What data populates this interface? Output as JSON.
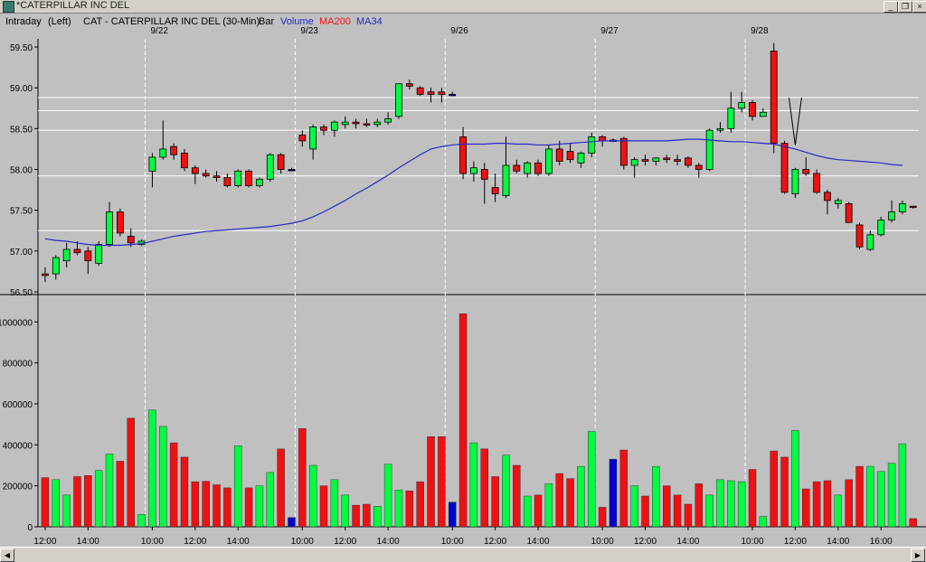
{
  "window": {
    "title": "*CATERPILLAR INC DEL",
    "minimize_glyph": "_",
    "restore_glyph": "❐",
    "close_glyph": "×"
  },
  "header": {
    "interval": "Intraday",
    "axis_side": "(Left)",
    "symbol_text": "CAT - CATERPILLAR INC DEL  (30-Min)",
    "bar_label": "Bar",
    "volume_label": "Volume",
    "ma200_label": "MA200",
    "ma34_label": "MA34"
  },
  "colors": {
    "up": "#00ff40",
    "down": "#ee1111",
    "flat": "#0000cc",
    "ma34": "#2828c8",
    "grid": "#ffffff",
    "bg": "#c0c0c0"
  },
  "scrollbar": {
    "left_glyph": "◀",
    "right_glyph": "▶"
  },
  "chart_data": {
    "type": "candlestick",
    "title": "CAT - CATERPILLAR INC DEL (30-Min)",
    "price_axis": {
      "ylim": [
        56.5,
        59.6
      ],
      "ticks": [
        "56.50",
        "57.00",
        "57.50",
        "58.00",
        "58.50",
        "59.00",
        "59.50"
      ]
    },
    "volume_axis": {
      "ylim": [
        0,
        1050000
      ],
      "ticks": [
        "0",
        "200000",
        "400000",
        "600000",
        "800000",
        "1000000"
      ]
    },
    "day_labels": [
      {
        "label": "9/22",
        "at_bar": 10
      },
      {
        "label": "9/23",
        "at_bar": 24
      },
      {
        "label": "9/26",
        "at_bar": 38
      },
      {
        "label": "9/27",
        "at_bar": 52
      },
      {
        "label": "9/28",
        "at_bar": 66
      }
    ],
    "time_labels": [
      {
        "label": "12:00",
        "at_bar": 0.5
      },
      {
        "label": "14:00",
        "at_bar": 4.5
      },
      {
        "label": "10:00",
        "at_bar": 10.5
      },
      {
        "label": "12:00",
        "at_bar": 14.5
      },
      {
        "label": "14:00",
        "at_bar": 18.5
      },
      {
        "label": "10:00",
        "at_bar": 24.5
      },
      {
        "label": "12:00",
        "at_bar": 28.5
      },
      {
        "label": "14:00",
        "at_bar": 32.5
      },
      {
        "label": "10:00",
        "at_bar": 38.5
      },
      {
        "label": "12:00",
        "at_bar": 42.5
      },
      {
        "label": "14:00",
        "at_bar": 46.5
      },
      {
        "label": "10:00",
        "at_bar": 52.5
      },
      {
        "label": "12:00",
        "at_bar": 56.5
      },
      {
        "label": "14:00",
        "at_bar": 60.5
      },
      {
        "label": "10:00",
        "at_bar": 66.5
      },
      {
        "label": "12:00",
        "at_bar": 70.5
      },
      {
        "label": "14:00",
        "at_bar": 74.5
      },
      {
        "label": "16:00",
        "at_bar": 78.5
      }
    ],
    "horizontal_lines": [
      57.25,
      57.92,
      58.48,
      58.72,
      58.88
    ],
    "annotation": "V",
    "bars": [
      {
        "o": 56.7,
        "h": 56.8,
        "l": 56.62,
        "c": 56.72,
        "v": 240000,
        "d": "down"
      },
      {
        "o": 56.72,
        "h": 56.95,
        "l": 56.65,
        "c": 56.92,
        "v": 230000,
        "d": "up"
      },
      {
        "o": 56.88,
        "h": 57.1,
        "l": 56.8,
        "c": 57.02,
        "v": 155000,
        "d": "up"
      },
      {
        "o": 57.02,
        "h": 57.12,
        "l": 56.95,
        "c": 56.98,
        "v": 245000,
        "d": "down"
      },
      {
        "o": 57.0,
        "h": 57.05,
        "l": 56.72,
        "c": 56.88,
        "v": 250000,
        "d": "down"
      },
      {
        "o": 56.85,
        "h": 57.12,
        "l": 56.82,
        "c": 57.08,
        "v": 275000,
        "d": "up"
      },
      {
        "o": 57.08,
        "h": 57.6,
        "l": 57.05,
        "c": 57.48,
        "v": 355000,
        "d": "up"
      },
      {
        "o": 57.48,
        "h": 57.52,
        "l": 57.18,
        "c": 57.22,
        "v": 320000,
        "d": "down"
      },
      {
        "o": 57.18,
        "h": 57.28,
        "l": 57.05,
        "c": 57.1,
        "v": 530000,
        "d": "down"
      },
      {
        "o": 57.08,
        "h": 57.14,
        "l": 57.06,
        "c": 57.12,
        "v": 60000,
        "d": "up"
      },
      {
        "o": 57.98,
        "h": 58.2,
        "l": 57.78,
        "c": 58.15,
        "v": 570000,
        "d": "up"
      },
      {
        "o": 58.15,
        "h": 58.6,
        "l": 58.12,
        "c": 58.25,
        "v": 490000,
        "d": "up"
      },
      {
        "o": 58.28,
        "h": 58.32,
        "l": 58.12,
        "c": 58.18,
        "v": 410000,
        "d": "down"
      },
      {
        "o": 58.2,
        "h": 58.25,
        "l": 57.98,
        "c": 58.02,
        "v": 340000,
        "d": "down"
      },
      {
        "o": 58.02,
        "h": 58.05,
        "l": 57.82,
        "c": 57.95,
        "v": 220000,
        "d": "down"
      },
      {
        "o": 57.95,
        "h": 58.0,
        "l": 57.9,
        "c": 57.92,
        "v": 222000,
        "d": "down"
      },
      {
        "o": 57.92,
        "h": 57.98,
        "l": 57.85,
        "c": 57.9,
        "v": 205000,
        "d": "down"
      },
      {
        "o": 57.9,
        "h": 57.95,
        "l": 57.78,
        "c": 57.8,
        "v": 190000,
        "d": "down"
      },
      {
        "o": 57.8,
        "h": 58.0,
        "l": 57.78,
        "c": 57.98,
        "v": 395000,
        "d": "up"
      },
      {
        "o": 57.98,
        "h": 58.0,
        "l": 57.78,
        "c": 57.8,
        "v": 190000,
        "d": "down"
      },
      {
        "o": 57.8,
        "h": 57.9,
        "l": 57.78,
        "c": 57.88,
        "v": 200000,
        "d": "up"
      },
      {
        "o": 57.88,
        "h": 58.2,
        "l": 57.85,
        "c": 58.18,
        "v": 265000,
        "d": "up"
      },
      {
        "o": 58.18,
        "h": 58.2,
        "l": 57.95,
        "c": 58.0,
        "v": 380000,
        "d": "down"
      },
      {
        "o": 58.0,
        "h": 58.02,
        "l": 57.98,
        "c": 58.0,
        "v": 45000,
        "d": "flat"
      },
      {
        "o": 58.42,
        "h": 58.48,
        "l": 58.28,
        "c": 58.35,
        "v": 480000,
        "d": "down"
      },
      {
        "o": 58.25,
        "h": 58.55,
        "l": 58.12,
        "c": 58.52,
        "v": 300000,
        "d": "up"
      },
      {
        "o": 58.52,
        "h": 58.55,
        "l": 58.42,
        "c": 58.48,
        "v": 200000,
        "d": "down"
      },
      {
        "o": 58.48,
        "h": 58.6,
        "l": 58.4,
        "c": 58.58,
        "v": 230000,
        "d": "up"
      },
      {
        "o": 58.58,
        "h": 58.65,
        "l": 58.5,
        "c": 58.55,
        "v": 155000,
        "d": "up"
      },
      {
        "o": 58.58,
        "h": 58.62,
        "l": 58.5,
        "c": 58.56,
        "v": 105000,
        "d": "down"
      },
      {
        "o": 58.56,
        "h": 58.62,
        "l": 58.52,
        "c": 58.55,
        "v": 110000,
        "d": "down"
      },
      {
        "o": 58.55,
        "h": 58.62,
        "l": 58.52,
        "c": 58.58,
        "v": 100000,
        "d": "up"
      },
      {
        "o": 58.58,
        "h": 58.7,
        "l": 58.55,
        "c": 58.62,
        "v": 305000,
        "d": "up"
      },
      {
        "o": 58.65,
        "h": 59.05,
        "l": 58.62,
        "c": 59.05,
        "v": 180000,
        "d": "up"
      },
      {
        "o": 59.05,
        "h": 59.1,
        "l": 58.98,
        "c": 59.02,
        "v": 175000,
        "d": "down"
      },
      {
        "o": 59.0,
        "h": 59.02,
        "l": 58.9,
        "c": 58.92,
        "v": 220000,
        "d": "down"
      },
      {
        "o": 58.95,
        "h": 59.0,
        "l": 58.82,
        "c": 58.92,
        "v": 440000,
        "d": "down"
      },
      {
        "o": 58.95,
        "h": 59.0,
        "l": 58.82,
        "c": 58.92,
        "v": 440000,
        "d": "down"
      },
      {
        "o": 58.92,
        "h": 58.95,
        "l": 58.9,
        "c": 58.92,
        "v": 120000,
        "d": "flat"
      },
      {
        "o": 58.4,
        "h": 58.52,
        "l": 57.88,
        "c": 57.95,
        "v": 1040000,
        "d": "down"
      },
      {
        "o": 57.95,
        "h": 58.1,
        "l": 57.85,
        "c": 58.02,
        "v": 410000,
        "d": "up"
      },
      {
        "o": 58.0,
        "h": 58.08,
        "l": 57.58,
        "c": 57.88,
        "v": 380000,
        "d": "down"
      },
      {
        "o": 57.78,
        "h": 57.95,
        "l": 57.6,
        "c": 57.7,
        "v": 245000,
        "d": "down"
      },
      {
        "o": 57.68,
        "h": 58.4,
        "l": 57.65,
        "c": 58.05,
        "v": 350000,
        "d": "up"
      },
      {
        "o": 58.05,
        "h": 58.12,
        "l": 57.95,
        "c": 57.98,
        "v": 300000,
        "d": "down"
      },
      {
        "o": 57.95,
        "h": 58.1,
        "l": 57.9,
        "c": 58.08,
        "v": 150000,
        "d": "up"
      },
      {
        "o": 58.08,
        "h": 58.12,
        "l": 57.92,
        "c": 57.95,
        "v": 155000,
        "d": "down"
      },
      {
        "o": 57.95,
        "h": 58.3,
        "l": 57.92,
        "c": 58.25,
        "v": 210000,
        "d": "up"
      },
      {
        "o": 58.25,
        "h": 58.35,
        "l": 58.05,
        "c": 58.1,
        "v": 260000,
        "d": "down"
      },
      {
        "o": 58.22,
        "h": 58.32,
        "l": 58.08,
        "c": 58.12,
        "v": 235000,
        "d": "down"
      },
      {
        "o": 58.08,
        "h": 58.22,
        "l": 58.02,
        "c": 58.2,
        "v": 295000,
        "d": "up"
      },
      {
        "o": 58.2,
        "h": 58.45,
        "l": 58.15,
        "c": 58.4,
        "v": 465000,
        "d": "up"
      },
      {
        "o": 58.4,
        "h": 58.42,
        "l": 58.28,
        "c": 58.35,
        "v": 95000,
        "d": "down"
      },
      {
        "o": 58.36,
        "h": 58.38,
        "l": 58.34,
        "c": 58.36,
        "v": 330000,
        "d": "flat"
      },
      {
        "o": 58.38,
        "h": 58.4,
        "l": 58.0,
        "c": 58.05,
        "v": 375000,
        "d": "down"
      },
      {
        "o": 58.05,
        "h": 58.15,
        "l": 57.9,
        "c": 58.12,
        "v": 200000,
        "d": "up"
      },
      {
        "o": 58.12,
        "h": 58.18,
        "l": 58.05,
        "c": 58.1,
        "v": 150000,
        "d": "down"
      },
      {
        "o": 58.1,
        "h": 58.15,
        "l": 58.05,
        "c": 58.14,
        "v": 295000,
        "d": "up"
      },
      {
        "o": 58.14,
        "h": 58.18,
        "l": 58.08,
        "c": 58.12,
        "v": 200000,
        "d": "down"
      },
      {
        "o": 58.12,
        "h": 58.18,
        "l": 58.05,
        "c": 58.1,
        "v": 155000,
        "d": "down"
      },
      {
        "o": 58.14,
        "h": 58.16,
        "l": 58.02,
        "c": 58.05,
        "v": 110000,
        "d": "down"
      },
      {
        "o": 58.05,
        "h": 58.08,
        "l": 57.9,
        "c": 58.0,
        "v": 210000,
        "d": "down"
      },
      {
        "o": 58.0,
        "h": 58.5,
        "l": 57.98,
        "c": 58.48,
        "v": 155000,
        "d": "up"
      },
      {
        "o": 58.48,
        "h": 58.58,
        "l": 58.45,
        "c": 58.5,
        "v": 230000,
        "d": "up"
      },
      {
        "o": 58.5,
        "h": 58.95,
        "l": 58.45,
        "c": 58.75,
        "v": 225000,
        "d": "up"
      },
      {
        "o": 58.75,
        "h": 58.95,
        "l": 58.7,
        "c": 58.82,
        "v": 220000,
        "d": "up"
      },
      {
        "o": 58.82,
        "h": 58.85,
        "l": 58.6,
        "c": 58.65,
        "v": 280000,
        "d": "down"
      },
      {
        "o": 58.65,
        "h": 58.75,
        "l": 58.65,
        "c": 58.7,
        "v": 50000,
        "d": "up"
      },
      {
        "o": 59.45,
        "h": 59.55,
        "l": 58.2,
        "c": 58.32,
        "v": 370000,
        "d": "down"
      },
      {
        "o": 58.32,
        "h": 58.35,
        "l": 57.7,
        "c": 57.72,
        "v": 340000,
        "d": "down"
      },
      {
        "o": 57.7,
        "h": 58.02,
        "l": 57.65,
        "c": 58.0,
        "v": 470000,
        "d": "up"
      },
      {
        "o": 58.0,
        "h": 58.15,
        "l": 57.92,
        "c": 57.95,
        "v": 185000,
        "d": "down"
      },
      {
        "o": 57.95,
        "h": 58.0,
        "l": 57.7,
        "c": 57.72,
        "v": 220000,
        "d": "down"
      },
      {
        "o": 57.72,
        "h": 57.75,
        "l": 57.45,
        "c": 57.62,
        "v": 225000,
        "d": "down"
      },
      {
        "o": 57.62,
        "h": 57.65,
        "l": 57.52,
        "c": 57.58,
        "v": 155000,
        "d": "up"
      },
      {
        "o": 57.58,
        "h": 57.6,
        "l": 57.35,
        "c": 57.35,
        "v": 230000,
        "d": "down"
      },
      {
        "o": 57.32,
        "h": 57.35,
        "l": 57.02,
        "c": 57.05,
        "v": 295000,
        "d": "down"
      },
      {
        "o": 57.02,
        "h": 57.25,
        "l": 57.0,
        "c": 57.2,
        "v": 295000,
        "d": "up"
      },
      {
        "o": 57.2,
        "h": 57.42,
        "l": 57.18,
        "c": 57.38,
        "v": 270000,
        "d": "up"
      },
      {
        "o": 57.38,
        "h": 57.62,
        "l": 57.35,
        "c": 57.48,
        "v": 310000,
        "d": "up"
      },
      {
        "o": 57.48,
        "h": 57.62,
        "l": 57.45,
        "c": 57.58,
        "v": 405000,
        "d": "up"
      },
      {
        "o": 57.55,
        "h": 57.55,
        "l": 57.52,
        "c": 57.55,
        "v": 40000,
        "d": "down"
      }
    ],
    "ma34": [
      57.15,
      57.13,
      57.12,
      57.1,
      57.08,
      57.07,
      57.07,
      57.07,
      57.08,
      57.09,
      57.12,
      57.15,
      57.18,
      57.2,
      57.22,
      57.24,
      57.25,
      57.26,
      57.27,
      57.28,
      57.29,
      57.3,
      57.32,
      57.34,
      57.37,
      57.42,
      57.48,
      57.55,
      57.62,
      57.7,
      57.77,
      57.85,
      57.93,
      58.02,
      58.1,
      58.18,
      58.25,
      58.28,
      58.3,
      58.31,
      58.31,
      58.31,
      58.32,
      58.32,
      58.31,
      58.31,
      58.3,
      58.3,
      58.31,
      58.32,
      58.33,
      58.34,
      58.35,
      58.35,
      58.35,
      58.35,
      58.35,
      58.35,
      58.35,
      58.36,
      58.37,
      58.37,
      58.36,
      58.35,
      58.34,
      58.34,
      58.33,
      58.32,
      58.31,
      58.28,
      58.25,
      58.21,
      58.17,
      58.14,
      58.12,
      58.11,
      58.1,
      58.09,
      58.08,
      58.06,
      58.05
    ]
  }
}
